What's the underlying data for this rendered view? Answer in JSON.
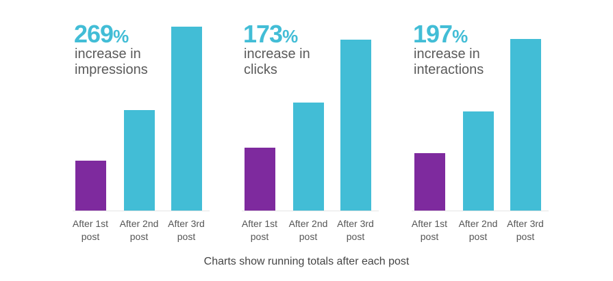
{
  "colors": {
    "first_bar": "#7E2A9E",
    "other_bars": "#42BDD6",
    "headline": "#42BDD6"
  },
  "chart_data": [
    {
      "type": "bar",
      "headline": "269",
      "headline_unit": "%",
      "subtitle": "increase in impressions",
      "categories": [
        "After 1st post",
        "After 2nd post",
        "After 3rd post"
      ],
      "values": [
        100,
        201,
        369
      ],
      "ylim": [
        0,
        370
      ],
      "grid": false
    },
    {
      "type": "bar",
      "headline": "173",
      "headline_unit": "%",
      "subtitle": "increase in clicks",
      "categories": [
        "After 1st post",
        "After 2nd post",
        "After 3rd post"
      ],
      "values": [
        100,
        173,
        273
      ],
      "ylim": [
        0,
        295
      ],
      "grid": false
    },
    {
      "type": "bar",
      "headline": "197",
      "headline_unit": "%",
      "subtitle": "increase in interactions",
      "categories": [
        "After 1st post",
        "After 2nd post",
        "After 3rd post"
      ],
      "values": [
        100,
        172,
        297
      ],
      "ylim": [
        0,
        320
      ],
      "grid": false
    }
  ],
  "caption": "Charts show running totals after each post"
}
